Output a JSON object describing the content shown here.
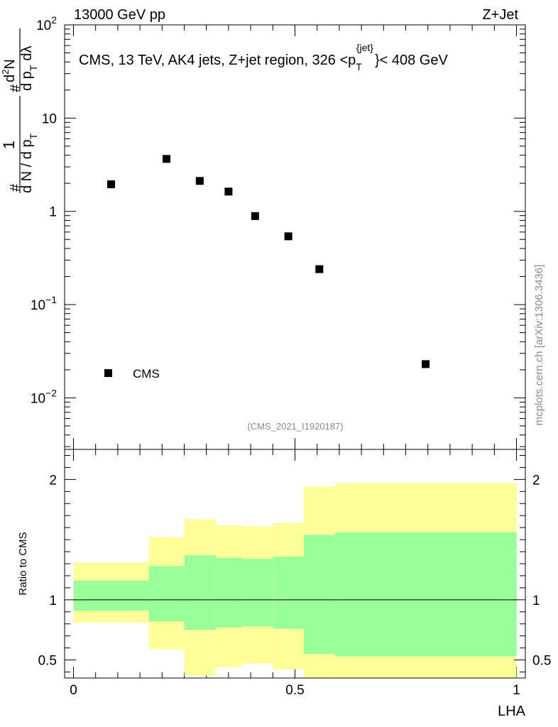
{
  "header": {
    "energy_label": "13000 GeV pp",
    "process_label": "Z+Jet"
  },
  "chart_data": [
    {
      "type": "scatter",
      "panel": "main",
      "title": "CMS, 13 TeV, AK4 jets, Z+jet region, 326 <p_T^{jet}< 408 GeV",
      "title_parts": {
        "main": "CMS, 13 TeV, AK4 jets, Z+jet region, 326 <p",
        "sub": "T",
        "sup": "{jet}",
        "end": "}< 408 GeV"
      },
      "ylabel": "1/(dN/dp_T) d²N/(dp_T dλ)",
      "ylabel_parts": {
        "num1": "1",
        "den1": "d N / d p",
        "sub_T": "T",
        "num2": "d",
        "num2_sup": "2",
        "num2_tail": "N",
        "den2": "d p",
        "den2_tail": "dλ",
        "hash": "#"
      },
      "yscale": "log",
      "ylim": [
        0.0028,
        100
      ],
      "xlim": [
        -0.02,
        1.02
      ],
      "yticks": [
        {
          "v": 100,
          "base": "10",
          "exp": "2"
        },
        {
          "v": 10,
          "base": "10",
          "exp": ""
        },
        {
          "v": 1,
          "base": "1",
          "exp": ""
        },
        {
          "v": 0.1,
          "base": "10",
          "exp": "−1"
        },
        {
          "v": 0.01,
          "base": "10",
          "exp": "−2"
        }
      ],
      "series": [
        {
          "name": "CMS",
          "x": [
            0.085,
            0.21,
            0.285,
            0.35,
            0.41,
            0.485,
            0.555,
            0.795
          ],
          "values": [
            1.95,
            3.65,
            2.12,
            1.63,
            0.89,
            0.54,
            0.24,
            0.023
          ]
        }
      ],
      "legend": {
        "label": "CMS",
        "placement": "bottom-left"
      },
      "annotation": "(CMS_2021_I1920187)"
    },
    {
      "type": "area",
      "panel": "ratio",
      "ylabel": "Ratio to CMS",
      "xlabel": "LHA",
      "xlim": [
        -0.02,
        1.02
      ],
      "ylim": [
        0.35,
        2.25
      ],
      "xticks": [
        {
          "v": 0,
          "label": "0"
        },
        {
          "v": 0.5,
          "label": "0.5"
        },
        {
          "v": 1,
          "label": "1"
        }
      ],
      "yticks": [
        {
          "v": 0.5,
          "label": "0.5"
        },
        {
          "v": 1,
          "label": "1"
        },
        {
          "v": 2,
          "label": "2"
        }
      ],
      "reference_line": 1,
      "bin_edges": [
        0,
        0.17,
        0.25,
        0.32,
        0.38,
        0.45,
        0.52,
        0.59,
        1.0
      ],
      "series": [
        {
          "name": "total uncertainty (yellow)",
          "low": [
            0.81,
            0.59,
            0.37,
            0.44,
            0.47,
            0.42,
            0.35,
            0.35
          ],
          "high": [
            1.31,
            1.52,
            1.67,
            1.62,
            1.61,
            1.64,
            1.94,
            1.97
          ]
        },
        {
          "name": "stat uncertainty (green)",
          "low": [
            0.91,
            0.82,
            0.75,
            0.77,
            0.78,
            0.76,
            0.55,
            0.53
          ],
          "high": [
            1.16,
            1.28,
            1.37,
            1.35,
            1.34,
            1.36,
            1.54,
            1.56
          ]
        }
      ]
    }
  ],
  "colors": {
    "yellow_band": "#ffff99",
    "green_band": "#99ff99",
    "axis": "#000000",
    "watermark": "#8a8a8a"
  },
  "watermark": "mcplots.cern.ch [arXiv:1306.3436]"
}
